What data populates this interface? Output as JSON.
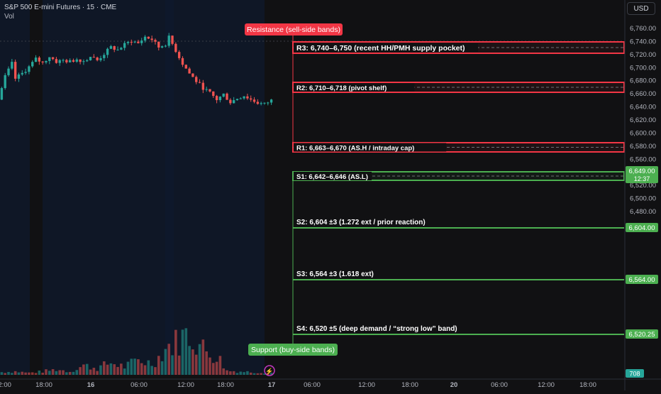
{
  "header": {
    "symbol_line": "S&P 500 E-mini Futures · 15 · CME",
    "volume_label": "Vol"
  },
  "currency_button": "USD",
  "y_axis_ticks": [
    "6,760.00",
    "6,740.00",
    "6,720.00",
    "6,700.00",
    "6,680.00",
    "6,660.00",
    "6,640.00",
    "6,620.00",
    "6,600.00",
    "6,580.00",
    "6,560.00",
    "6,540.00",
    "6,520.00",
    "6,500.00",
    "6,480.00"
  ],
  "x_axis_ticks": [
    "12:00",
    "18:00",
    "16",
    "06:00",
    "12:00",
    "18:00",
    "17",
    "06:00",
    "12:00",
    "18:00",
    "20",
    "06:00",
    "12:00",
    "18:00"
  ],
  "price_badges": {
    "current_price": "6,649.00",
    "countdown": "12:37",
    "s2": "6,604.00",
    "s3": "6,564.00",
    "s4": "6,520.25",
    "volume": "708"
  },
  "annotations": {
    "resistance_title": "Resistance (sell-side bands)",
    "support_title": "Support (buy-side bands)",
    "r3": "R3: 6,740–6,750 (recent HH/PMH supply pocket)",
    "r2": "R2: 6,710–6,718 (pivot shelf)",
    "r1": "R1: 6,663–6,670 (AS.H / intraday cap)",
    "s1": "S1: 6,642–6,646 (AS.L)",
    "s2": "S2: 6,604 ±3 (1.272 ext / prior reaction)",
    "s3": "S3: 6,564 ±3 (1.618 ext)",
    "s4": "S4: 6,520 ±5 (deep demand / “strong low” band)"
  },
  "colors": {
    "background": "#111113",
    "session_shade": "#0f1a2e",
    "resistance": "#f23645",
    "support": "#4caf50",
    "up_candle": "#26a69a",
    "down_candle": "#ef5350",
    "text": "#d1d4dc"
  },
  "chart_data": {
    "type": "candlestick",
    "instrument": "S&P 500 E-mini Futures",
    "interval": "15",
    "exchange": "CME",
    "ylim": [
      6480,
      6770
    ],
    "current_price": 6649.0,
    "close_path": [
      [
        0,
        6650
      ],
      [
        2,
        6685
      ],
      [
        4,
        6705
      ],
      [
        5,
        6682
      ],
      [
        7,
        6690
      ],
      [
        9,
        6700
      ],
      [
        11,
        6712
      ],
      [
        13,
        6706
      ],
      [
        15,
        6716
      ],
      [
        17,
        6708
      ],
      [
        19,
        6710
      ],
      [
        21,
        6708
      ],
      [
        23,
        6712
      ],
      [
        25,
        6709
      ],
      [
        27,
        6716
      ],
      [
        29,
        6710
      ],
      [
        31,
        6720
      ],
      [
        33,
        6730
      ],
      [
        35,
        6726
      ],
      [
        37,
        6734
      ],
      [
        39,
        6740
      ],
      [
        41,
        6736
      ],
      [
        43,
        6746
      ],
      [
        45,
        6742
      ],
      [
        47,
        6730
      ],
      [
        49,
        6735
      ],
      [
        50,
        6745
      ],
      [
        52,
        6725
      ],
      [
        54,
        6705
      ],
      [
        56,
        6690
      ],
      [
        58,
        6678
      ],
      [
        60,
        6668
      ],
      [
        62,
        6660
      ],
      [
        64,
        6650
      ],
      [
        66,
        6658
      ],
      [
        68,
        6646
      ],
      [
        70,
        6652
      ],
      [
        72,
        6656
      ],
      [
        74,
        6650
      ],
      [
        76,
        6645
      ],
      [
        78,
        6643
      ],
      [
        80,
        6649
      ]
    ],
    "volume_profile": [
      [
        0,
        4
      ],
      [
        4,
        5
      ],
      [
        8,
        3
      ],
      [
        12,
        5
      ],
      [
        16,
        8
      ],
      [
        20,
        5
      ],
      [
        24,
        14
      ],
      [
        28,
        10
      ],
      [
        32,
        18
      ],
      [
        36,
        12
      ],
      [
        40,
        22
      ],
      [
        44,
        17
      ],
      [
        46,
        26
      ],
      [
        48,
        40
      ],
      [
        50,
        45
      ],
      [
        52,
        52
      ],
      [
        54,
        60
      ],
      [
        56,
        55
      ],
      [
        58,
        44
      ],
      [
        60,
        35
      ],
      [
        62,
        30
      ],
      [
        64,
        22
      ],
      [
        66,
        6
      ],
      [
        70,
        5
      ],
      [
        74,
        4
      ],
      [
        80,
        3
      ]
    ],
    "levels": {
      "resistance": [
        {
          "label": "R3",
          "low": 6740,
          "high": 6750
        },
        {
          "label": "R2",
          "low": 6710,
          "high": 6718
        },
        {
          "label": "R1",
          "low": 6663,
          "high": 6670
        }
      ],
      "support": [
        {
          "label": "S1",
          "low": 6642,
          "high": 6646
        },
        {
          "label": "S2",
          "value": 6604
        },
        {
          "label": "S3",
          "value": 6564
        },
        {
          "label": "S4",
          "value": 6520.25
        }
      ]
    }
  }
}
